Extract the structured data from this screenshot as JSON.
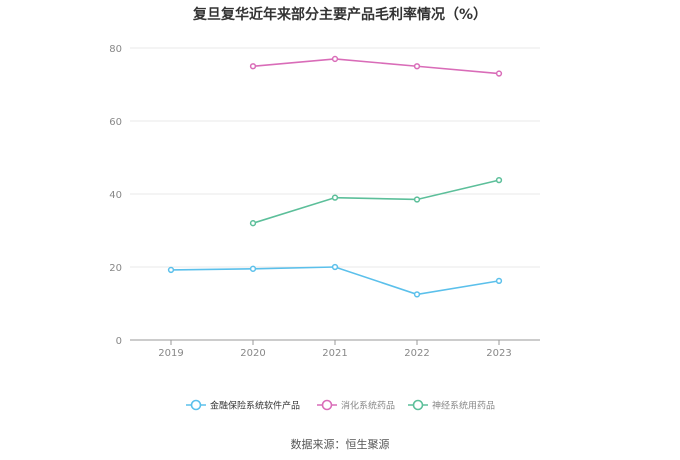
{
  "chart_data": {
    "type": "line",
    "title": "复旦复华近年来部分主要产品毛利率情况（%）",
    "categories": [
      "2019",
      "2020",
      "2021",
      "2022",
      "2023"
    ],
    "ylim": [
      0,
      80
    ],
    "yticks": [
      0,
      20,
      40,
      60,
      80
    ],
    "grid": true,
    "legend_position": "bottom",
    "series": [
      {
        "name": "金融保险系统软件产品",
        "color": "#5bc0eb",
        "values": [
          19.2,
          19.5,
          20.0,
          12.5,
          16.2
        ]
      },
      {
        "name": "消化系统药品",
        "color": "#d96cb8",
        "values": [
          null,
          75.0,
          77.0,
          75.0,
          73.0
        ]
      },
      {
        "name": "神经系统用药品",
        "color": "#5cbf9a",
        "values": [
          null,
          32.0,
          39.0,
          38.5,
          43.8
        ]
      }
    ],
    "source": "数据来源：恒生聚源"
  }
}
